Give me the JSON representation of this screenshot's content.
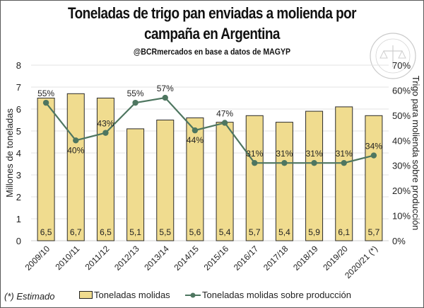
{
  "chart_data": {
    "type": "bar",
    "title": "Toneladas de trigo pan enviadas a molienda por campaña en Argentina",
    "title_lines": [
      "Toneladas de trigo pan enviadas a molienda por",
      "campaña en Argentina"
    ],
    "subtitle": "@BCRmercados en base a datos de MAGYP",
    "xlabel": "",
    "ylabel": "Millones de toneladas",
    "y2label": "Trigo para molienda sobre producción",
    "ylim": [
      0,
      8
    ],
    "y2lim": [
      0,
      70
    ],
    "yticks": [
      "0",
      "1",
      "2",
      "3",
      "4",
      "5",
      "6",
      "7",
      "8"
    ],
    "y2ticks": [
      "0%",
      "10%",
      "20%",
      "30%",
      "40%",
      "50%",
      "60%",
      "70%"
    ],
    "grid": true,
    "legend_position": "bottom",
    "categories": [
      "2009/10",
      "2010/11",
      "2011/12",
      "2012/13",
      "2013/14",
      "2014/15",
      "2015/16",
      "2016/17",
      "2017/18",
      "2018/19",
      "2019/20",
      "2020/21 (*)"
    ],
    "series": [
      {
        "name": "Toneladas molidas",
        "type": "bar",
        "axis": "left",
        "color": "#f0dc8f",
        "values": [
          6.5,
          6.7,
          6.5,
          5.1,
          5.5,
          5.6,
          5.4,
          5.7,
          5.4,
          5.9,
          6.1,
          5.7
        ],
        "labels": [
          "6,5",
          "6,7",
          "6,5",
          "5,1",
          "5,5",
          "5,6",
          "5,4",
          "5,7",
          "5,4",
          "5,9",
          "6,1",
          "5,7"
        ]
      },
      {
        "name": "Toneladas molidas sobre producción",
        "type": "line",
        "axis": "right",
        "color": "#4e7660",
        "values": [
          55,
          40,
          43,
          55,
          57,
          44,
          47,
          31,
          31,
          31,
          31,
          34
        ],
        "labels": [
          "55%",
          "40%",
          "43%",
          "55%",
          "57%",
          "44%",
          "47%",
          "31%",
          "31%",
          "31%",
          "31%",
          "34%"
        ],
        "label_pos": [
          "above",
          "below",
          "above",
          "above",
          "above",
          "below",
          "above",
          "above",
          "above",
          "above",
          "above",
          "above"
        ]
      }
    ],
    "footnote": "(*) Estimado"
  },
  "watermark": "Bolsa de Comercio de Rosario seal"
}
